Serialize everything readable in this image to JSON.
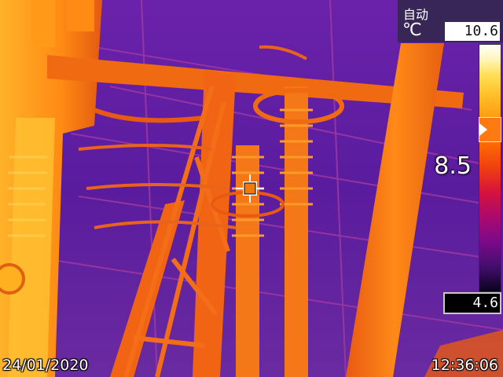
{
  "camera": {
    "mode": "自动",
    "unit": "℃",
    "temp_max": "10.6",
    "temp_min": "4.6",
    "temp_span_marker": "8.5",
    "date": "24/01/2020",
    "time": "12:36:06"
  },
  "colors": {
    "background": "#5a1fa3",
    "hot_orange": "#f07a10",
    "hot_yellow": "#ffc12a",
    "cool_purple": "#5a1fa3"
  },
  "icons": {
    "crosshair": "spot-meter-crosshair-icon",
    "palette_arrow": "palette-level-arrow-icon"
  }
}
